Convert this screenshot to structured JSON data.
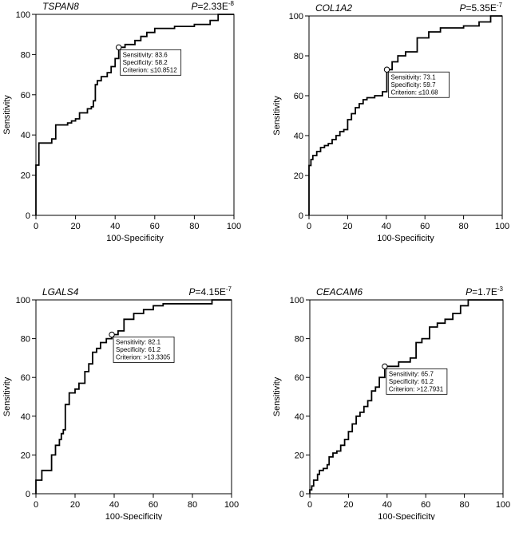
{
  "chart_data": [
    {
      "type": "line",
      "gene": "TSPAN8",
      "p_prefix": "P",
      "p_mantissa": "=2.33E",
      "p_exponent": "-8",
      "xlabel": "100-Specificity",
      "ylabel": "Sensitivity",
      "xlim": [
        0,
        100
      ],
      "ylim": [
        0,
        100
      ],
      "xticks": [
        "0",
        "20",
        "40",
        "60",
        "80",
        "100"
      ],
      "yticks": [
        "0",
        "20",
        "40",
        "60",
        "80",
        "100"
      ],
      "point": [
        41.8,
        83.6
      ],
      "annotation": [
        "Sensitivity: 83.6",
        "Specificity: 58.2",
        "Criterion: ≤10.8512"
      ],
      "x": [
        0,
        0,
        1.5,
        1.5,
        8,
        8,
        10,
        10,
        16,
        16,
        18,
        18,
        20,
        20,
        22,
        22,
        26,
        26,
        28,
        28,
        29,
        29,
        30,
        30,
        31,
        31,
        33,
        33,
        36,
        36,
        38,
        38,
        40,
        40,
        41.8,
        41.8,
        45,
        45,
        50,
        50,
        53,
        53,
        56,
        56,
        60,
        60,
        70,
        70,
        80,
        80,
        88,
        88,
        92,
        92,
        100
      ],
      "y": [
        0,
        25,
        25,
        36,
        36,
        38,
        38,
        45,
        45,
        46,
        46,
        47,
        47,
        48,
        48,
        51,
        51,
        53,
        53,
        54,
        54,
        57,
        57,
        65,
        65,
        67,
        67,
        69,
        69,
        71,
        71,
        74,
        74,
        78,
        78,
        83.6,
        83.6,
        85,
        85,
        87,
        87,
        89,
        89,
        91,
        91,
        93,
        93,
        94,
        94,
        95,
        95,
        97,
        97,
        100,
        100
      ]
    },
    {
      "type": "line",
      "gene": "COL1A2",
      "p_prefix": "P",
      "p_mantissa": "=5.35E",
      "p_exponent": "-7",
      "xlabel": "100-Specificity",
      "ylabel": "Sensitivity",
      "xlim": [
        0,
        100
      ],
      "ylim": [
        0,
        100
      ],
      "xticks": [
        "0",
        "20",
        "40",
        "60",
        "80",
        "100"
      ],
      "yticks": [
        "0",
        "20",
        "40",
        "60",
        "80",
        "100"
      ],
      "point": [
        40.3,
        73.1
      ],
      "annotation": [
        "Sensitivity: 73.1",
        "Specificity: 59.7",
        "Criterion: ≤10.68"
      ],
      "x": [
        0,
        0,
        1,
        1,
        2,
        2,
        4,
        4,
        6,
        6,
        8,
        8,
        10,
        10,
        12,
        12,
        14,
        14,
        16,
        16,
        18,
        18,
        20,
        20,
        22,
        22,
        24,
        24,
        26,
        26,
        28,
        28,
        30,
        30,
        34,
        34,
        38,
        38,
        40.3,
        40.3,
        43,
        43,
        46,
        46,
        50,
        50,
        56,
        56,
        62,
        62,
        68,
        68,
        80,
        80,
        88,
        88,
        94,
        94,
        100
      ],
      "y": [
        0,
        25,
        25,
        28,
        28,
        30,
        30,
        32,
        32,
        34,
        34,
        35,
        35,
        36,
        36,
        38,
        38,
        40,
        40,
        42,
        42,
        43,
        43,
        48,
        48,
        51,
        51,
        54,
        54,
        56,
        56,
        58,
        58,
        59,
        59,
        60,
        60,
        62,
        62,
        73.1,
        73.1,
        77,
        77,
        80,
        80,
        82,
        82,
        89,
        89,
        92,
        92,
        94,
        94,
        95,
        95,
        97,
        97,
        100,
        100
      ]
    },
    {
      "type": "line",
      "gene": "LGALS4",
      "p_prefix": "P",
      "p_mantissa": "=4.15E",
      "p_exponent": "-7",
      "xlabel": "100-Specificity",
      "ylabel": "Sensitivity",
      "xlim": [
        0,
        100
      ],
      "ylim": [
        0,
        100
      ],
      "xticks": [
        "0",
        "20",
        "40",
        "60",
        "80",
        "100"
      ],
      "yticks": [
        "0",
        "20",
        "40",
        "60",
        "80",
        "100"
      ],
      "point": [
        38.8,
        82.1
      ],
      "annotation": [
        "Sensitivity: 82.1",
        "Specificity: 61.2",
        "Criterion: >13.3305"
      ],
      "x": [
        0,
        0,
        3,
        3,
        8,
        8,
        10,
        10,
        12,
        12,
        13,
        13,
        14,
        14,
        15,
        15,
        17,
        17,
        20,
        20,
        22,
        22,
        25,
        25,
        27,
        27,
        29,
        29,
        31,
        31,
        33,
        33,
        36,
        36,
        38.8,
        38.8,
        42,
        42,
        45,
        45,
        50,
        50,
        55,
        55,
        60,
        60,
        65,
        65,
        90,
        90,
        100
      ],
      "y": [
        0,
        7,
        7,
        12,
        12,
        20,
        20,
        25,
        25,
        28,
        28,
        31,
        31,
        33,
        33,
        46,
        46,
        52,
        52,
        54,
        54,
        57,
        57,
        63,
        63,
        67,
        67,
        73,
        73,
        75,
        75,
        78,
        78,
        80,
        80,
        82.1,
        82.1,
        84,
        84,
        90,
        90,
        93,
        93,
        95,
        95,
        97,
        97,
        98,
        98,
        100,
        100
      ]
    },
    {
      "type": "line",
      "gene": "CEACAM6",
      "p_prefix": "P",
      "p_mantissa": "=1.7E",
      "p_exponent": "-3",
      "xlabel": "100-Specificity",
      "ylabel": "Sensitivity",
      "xlim": [
        0,
        100
      ],
      "ylim": [
        0,
        100
      ],
      "xticks": [
        "0",
        "20",
        "40",
        "60",
        "80",
        "100"
      ],
      "yticks": [
        "0",
        "20",
        "40",
        "60",
        "80",
        "100"
      ],
      "point": [
        38.8,
        65.7
      ],
      "annotation": [
        "Sensitivity: 65.7",
        "Specificity: 61.2",
        "Criterion: >12.7931"
      ],
      "x": [
        0,
        0,
        1,
        1,
        2,
        2,
        4,
        4,
        5,
        5,
        7,
        7,
        9,
        9,
        10,
        10,
        12,
        12,
        14,
        14,
        16,
        16,
        18,
        18,
        20,
        20,
        22,
        22,
        24,
        24,
        26,
        26,
        28,
        28,
        30,
        30,
        32,
        32,
        34,
        34,
        36,
        36,
        38.8,
        38.8,
        46,
        46,
        52,
        52,
        55,
        55,
        58,
        58,
        62,
        62,
        66,
        66,
        70,
        70,
        74,
        74,
        78,
        78,
        82,
        82,
        100
      ],
      "y": [
        0,
        2,
        2,
        4,
        4,
        7,
        7,
        10,
        10,
        12,
        12,
        13,
        13,
        15,
        15,
        19,
        19,
        21,
        21,
        22,
        22,
        25,
        25,
        28,
        28,
        32,
        32,
        36,
        36,
        40,
        40,
        42,
        42,
        45,
        45,
        48,
        48,
        53,
        53,
        55,
        55,
        60,
        60,
        65.7,
        65.7,
        68,
        68,
        70,
        70,
        78,
        78,
        80,
        80,
        86,
        86,
        88,
        88,
        90,
        90,
        93,
        93,
        97,
        97,
        100,
        100
      ]
    }
  ]
}
